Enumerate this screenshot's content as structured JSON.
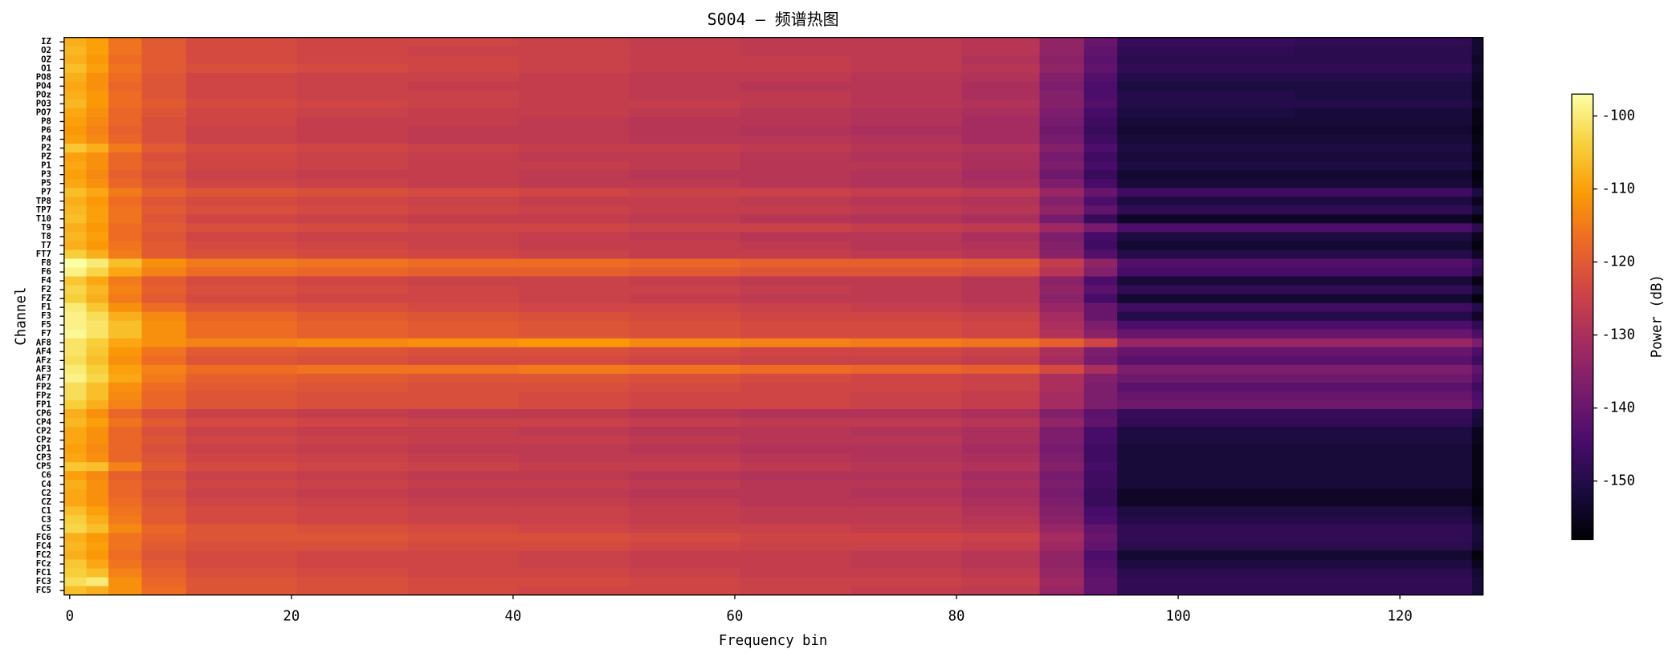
{
  "chart_data": {
    "type": "heatmap",
    "title": "S004 — 频谱热图",
    "x_label": "Frequency bin",
    "y_label": "Channel",
    "colorbar_label": "Power (dB)",
    "x_edges": [
      -0.5,
      1.5,
      3.5,
      6.5,
      10.5,
      20.5,
      30.5,
      40.5,
      50.5,
      60.5,
      70.5,
      80.5,
      87.5,
      91.5,
      94.5,
      110.5,
      126.5,
      127.5
    ],
    "xlim": [
      -0.5,
      127.5
    ],
    "xticks": [
      0,
      20,
      40,
      60,
      80,
      100,
      120
    ],
    "zlim": [
      -158,
      -97
    ],
    "zticks": [
      -100,
      -110,
      -120,
      -130,
      -140,
      -150
    ],
    "colormap": [
      "#000004",
      "#1b0c41",
      "#4a0c6b",
      "#781c6d",
      "#a52c60",
      "#cf4446",
      "#ed6925",
      "#fb9b06",
      "#f7d13d",
      "#fcffa4"
    ],
    "categories": [
      "IZ",
      "O2",
      "OZ",
      "O1",
      "PO8",
      "PO4",
      "POz",
      "PO3",
      "PO7",
      "P8",
      "P6",
      "P4",
      "P2",
      "PZ",
      "P1",
      "P3",
      "P5",
      "P7",
      "TP8",
      "TP7",
      "T10",
      "T9",
      "T8",
      "T7",
      "FT7",
      "F8",
      "F6",
      "F4",
      "F2",
      "FZ",
      "F1",
      "F3",
      "F5",
      "F7",
      "AF8",
      "AF4",
      "AFz",
      "AF3",
      "AF7",
      "FP2",
      "FPz",
      "FP1",
      "CP6",
      "CP4",
      "CP2",
      "CPz",
      "CP1",
      "CP3",
      "CP5",
      "C6",
      "C4",
      "C2",
      "CZ",
      "C1",
      "C3",
      "C5",
      "FC6",
      "FC4",
      "FC2",
      "FCz",
      "FC1",
      "FC3",
      "FC5"
    ],
    "values": [
      [
        -108,
        -110,
        -116,
        -120,
        -123,
        -124,
        -124,
        -125,
        -126,
        -127,
        -127,
        -128,
        -134,
        -140,
        -147,
        -148,
        -153
      ],
      [
        -107,
        -110,
        -116,
        -120,
        -123,
        -124,
        -125,
        -125,
        -126,
        -127,
        -127,
        -128,
        -134,
        -141,
        -148,
        -149,
        -153
      ],
      [
        -108,
        -111,
        -117,
        -120,
        -123,
        -124,
        -124,
        -125,
        -126,
        -126,
        -127,
        -129,
        -135,
        -142,
        -149,
        -149,
        -154
      ],
      [
        -106,
        -110,
        -116,
        -120,
        -122,
        -123,
        -124,
        -125,
        -126,
        -126,
        -127,
        -128,
        -134,
        -141,
        -148,
        -148,
        -153
      ],
      [
        -108,
        -112,
        -117,
        -121,
        -124,
        -125,
        -125,
        -126,
        -127,
        -127,
        -128,
        -129,
        -136,
        -143,
        -150,
        -150,
        -154
      ],
      [
        -109,
        -112,
        -118,
        -121,
        -124,
        -125,
        -126,
        -126,
        -127,
        -128,
        -128,
        -130,
        -137,
        -144,
        -151,
        -151,
        -155
      ],
      [
        -108,
        -111,
        -117,
        -121,
        -124,
        -125,
        -125,
        -126,
        -127,
        -127,
        -128,
        -130,
        -136,
        -144,
        -150,
        -151,
        -155
      ],
      [
        -107,
        -111,
        -117,
        -120,
        -123,
        -124,
        -125,
        -126,
        -126,
        -127,
        -128,
        -129,
        -136,
        -143,
        -150,
        -150,
        -154
      ],
      [
        -109,
        -112,
        -118,
        -121,
        -124,
        -125,
        -126,
        -126,
        -127,
        -128,
        -129,
        -130,
        -137,
        -145,
        -151,
        -152,
        -156
      ],
      [
        -110,
        -113,
        -118,
        -122,
        -124,
        -126,
        -126,
        -127,
        -128,
        -128,
        -129,
        -131,
        -138,
        -146,
        -152,
        -152,
        -156
      ],
      [
        -111,
        -114,
        -119,
        -122,
        -125,
        -126,
        -127,
        -127,
        -128,
        -129,
        -130,
        -131,
        -139,
        -147,
        -153,
        -153,
        -157
      ],
      [
        -110,
        -113,
        -118,
        -122,
        -125,
        -126,
        -127,
        -127,
        -128,
        -128,
        -129,
        -131,
        -138,
        -146,
        -152,
        -152,
        -156
      ],
      [
        -105,
        -108,
        -115,
        -120,
        -123,
        -124,
        -125,
        -126,
        -126,
        -127,
        -128,
        -129,
        -136,
        -144,
        -151,
        -151,
        -155
      ],
      [
        -110,
        -112,
        -118,
        -122,
        -124,
        -125,
        -126,
        -127,
        -127,
        -128,
        -129,
        -130,
        -138,
        -146,
        -152,
        -152,
        -156
      ],
      [
        -109,
        -112,
        -118,
        -121,
        -124,
        -125,
        -126,
        -126,
        -127,
        -128,
        -128,
        -130,
        -137,
        -145,
        -151,
        -151,
        -155
      ],
      [
        -110,
        -113,
        -119,
        -122,
        -125,
        -126,
        -126,
        -127,
        -128,
        -128,
        -129,
        -131,
        -139,
        -147,
        -153,
        -153,
        -157
      ],
      [
        -109,
        -112,
        -118,
        -121,
        -124,
        -125,
        -126,
        -127,
        -127,
        -128,
        -129,
        -130,
        -137,
        -145,
        -152,
        -152,
        -156
      ],
      [
        -106,
        -109,
        -115,
        -119,
        -121,
        -122,
        -123,
        -124,
        -125,
        -125,
        -126,
        -127,
        -133,
        -140,
        -146,
        -146,
        -151
      ],
      [
        -108,
        -111,
        -117,
        -121,
        -123,
        -124,
        -125,
        -126,
        -126,
        -127,
        -128,
        -129,
        -136,
        -144,
        -151,
        -151,
        -155
      ],
      [
        -107,
        -110,
        -116,
        -120,
        -122,
        -123,
        -124,
        -125,
        -126,
        -126,
        -127,
        -128,
        -134,
        -141,
        -148,
        -148,
        -152
      ],
      [
        -106,
        -110,
        -116,
        -121,
        -124,
        -125,
        -126,
        -126,
        -127,
        -128,
        -129,
        -130,
        -138,
        -147,
        -154,
        -154,
        -157
      ],
      [
        -108,
        -111,
        -117,
        -120,
        -122,
        -123,
        -124,
        -124,
        -125,
        -125,
        -126,
        -127,
        -132,
        -138,
        -144,
        -144,
        -149
      ],
      [
        -107,
        -110,
        -117,
        -121,
        -124,
        -125,
        -125,
        -126,
        -127,
        -128,
        -128,
        -130,
        -137,
        -145,
        -151,
        -151,
        -155
      ],
      [
        -108,
        -111,
        -116,
        -120,
        -123,
        -124,
        -125,
        -126,
        -126,
        -127,
        -128,
        -129,
        -136,
        -146,
        -153,
        -153,
        -157
      ],
      [
        -104,
        -108,
        -115,
        -120,
        -122,
        -123,
        -124,
        -125,
        -126,
        -126,
        -127,
        -128,
        -135,
        -143,
        -150,
        -150,
        -154
      ],
      [
        -97,
        -100,
        -106,
        -112,
        -115,
        -116,
        -117,
        -117,
        -118,
        -119,
        -119,
        -120,
        -126,
        -134,
        -143,
        -143,
        -147
      ],
      [
        -99,
        -103,
        -109,
        -114,
        -117,
        -118,
        -119,
        -119,
        -120,
        -121,
        -121,
        -122,
        -128,
        -136,
        -145,
        -145,
        -149
      ],
      [
        -105,
        -109,
        -115,
        -120,
        -123,
        -124,
        -125,
        -125,
        -126,
        -127,
        -127,
        -128,
        -135,
        -144,
        -152,
        -152,
        -156
      ],
      [
        -103,
        -107,
        -114,
        -119,
        -122,
        -123,
        -124,
        -125,
        -125,
        -126,
        -127,
        -128,
        -134,
        -142,
        -148,
        -148,
        -152
      ],
      [
        -104,
        -108,
        -115,
        -120,
        -123,
        -124,
        -124,
        -125,
        -126,
        -127,
        -127,
        -128,
        -135,
        -145,
        -153,
        -153,
        -157
      ],
      [
        -100,
        -105,
        -112,
        -117,
        -121,
        -122,
        -123,
        -124,
        -124,
        -125,
        -126,
        -127,
        -133,
        -140,
        -146,
        -146,
        -150
      ],
      [
        -99,
        -102,
        -108,
        -113,
        -118,
        -120,
        -121,
        -122,
        -123,
        -124,
        -124,
        -125,
        -131,
        -140,
        -150,
        -150,
        -154
      ],
      [
        -99,
        -101,
        -106,
        -112,
        -117,
        -119,
        -120,
        -121,
        -122,
        -123,
        -123,
        -124,
        -130,
        -137,
        -144,
        -144,
        -148
      ],
      [
        -98,
        -101,
        -106,
        -112,
        -117,
        -119,
        -120,
        -121,
        -122,
        -123,
        -123,
        -124,
        -129,
        -135,
        -140,
        -140,
        -144
      ],
      [
        -101,
        -104,
        -109,
        -112,
        -114,
        -113,
        -112,
        -111,
        -113,
        -114,
        -115,
        -116,
        -119,
        -124,
        -133,
        -133,
        -137
      ],
      [
        -101,
        -105,
        -111,
        -116,
        -120,
        -121,
        -122,
        -122,
        -123,
        -124,
        -124,
        -125,
        -130,
        -137,
        -140,
        -140,
        -144
      ],
      [
        -102,
        -106,
        -112,
        -117,
        -121,
        -122,
        -123,
        -123,
        -124,
        -125,
        -125,
        -126,
        -131,
        -138,
        -142,
        -142,
        -146
      ],
      [
        -100,
        -104,
        -110,
        -114,
        -117,
        -116,
        -116,
        -115,
        -116,
        -117,
        -118,
        -119,
        -123,
        -130,
        -137,
        -137,
        -141
      ],
      [
        -99,
        -103,
        -109,
        -115,
        -119,
        -120,
        -121,
        -121,
        -122,
        -123,
        -124,
        -125,
        -130,
        -136,
        -139,
        -139,
        -143
      ],
      [
        -102,
        -106,
        -112,
        -117,
        -120,
        -121,
        -122,
        -122,
        -123,
        -124,
        -124,
        -125,
        -130,
        -137,
        -142,
        -142,
        -146
      ],
      [
        -102,
        -106,
        -113,
        -118,
        -121,
        -122,
        -122,
        -123,
        -124,
        -124,
        -125,
        -126,
        -131,
        -137,
        -140,
        -140,
        -144
      ],
      [
        -104,
        -108,
        -114,
        -118,
        -121,
        -122,
        -122,
        -123,
        -124,
        -124,
        -125,
        -126,
        -131,
        -137,
        -139,
        -139,
        -143
      ],
      [
        -108,
        -112,
        -118,
        -122,
        -125,
        -126,
        -127,
        -127,
        -128,
        -129,
        -129,
        -130,
        -136,
        -142,
        -147,
        -147,
        -151
      ],
      [
        -107,
        -110,
        -116,
        -120,
        -123,
        -124,
        -125,
        -125,
        -126,
        -127,
        -127,
        -128,
        -134,
        -141,
        -148,
        -148,
        -152
      ],
      [
        -109,
        -112,
        -118,
        -122,
        -125,
        -126,
        -126,
        -127,
        -128,
        -128,
        -129,
        -130,
        -137,
        -145,
        -151,
        -151,
        -155
      ],
      [
        -109,
        -112,
        -118,
        -121,
        -124,
        -125,
        -126,
        -126,
        -127,
        -128,
        -128,
        -130,
        -137,
        -145,
        -151,
        -151,
        -155
      ],
      [
        -110,
        -113,
        -118,
        -122,
        -125,
        -126,
        -127,
        -127,
        -128,
        -129,
        -129,
        -131,
        -138,
        -146,
        -152,
        -152,
        -156
      ],
      [
        -109,
        -112,
        -118,
        -121,
        -124,
        -125,
        -126,
        -127,
        -127,
        -128,
        -129,
        -130,
        -137,
        -146,
        -152,
        -152,
        -156
      ],
      [
        -105,
        -106,
        -114,
        -120,
        -123,
        -124,
        -125,
        -126,
        -126,
        -127,
        -128,
        -129,
        -136,
        -145,
        -152,
        -152,
        -156
      ],
      [
        -110,
        -113,
        -119,
        -122,
        -125,
        -126,
        -127,
        -127,
        -128,
        -129,
        -129,
        -131,
        -138,
        -146,
        -152,
        -152,
        -156
      ],
      [
        -108,
        -112,
        -118,
        -121,
        -124,
        -125,
        -126,
        -126,
        -127,
        -128,
        -128,
        -130,
        -137,
        -146,
        -152,
        -152,
        -156
      ],
      [
        -109,
        -112,
        -118,
        -122,
        -125,
        -126,
        -127,
        -127,
        -128,
        -128,
        -129,
        -131,
        -138,
        -147,
        -154,
        -154,
        -157
      ],
      [
        -109,
        -112,
        -117,
        -121,
        -124,
        -125,
        -126,
        -126,
        -127,
        -128,
        -128,
        -130,
        -137,
        -147,
        -154,
        -154,
        -157
      ],
      [
        -106,
        -110,
        -116,
        -120,
        -123,
        -124,
        -125,
        -125,
        -126,
        -127,
        -127,
        -129,
        -136,
        -145,
        -151,
        -151,
        -155
      ],
      [
        -104,
        -108,
        -115,
        -120,
        -123,
        -124,
        -125,
        -125,
        -126,
        -127,
        -127,
        -128,
        -135,
        -144,
        -150,
        -150,
        -154
      ],
      [
        -103,
        -106,
        -113,
        -118,
        -121,
        -122,
        -123,
        -124,
        -125,
        -125,
        -126,
        -127,
        -133,
        -141,
        -148,
        -148,
        -152
      ],
      [
        -108,
        -111,
        -116,
        -119,
        -121,
        -121,
        -122,
        -122,
        -123,
        -124,
        -124,
        -125,
        -131,
        -140,
        -148,
        -148,
        -152
      ],
      [
        -107,
        -110,
        -116,
        -120,
        -122,
        -122,
        -123,
        -123,
        -124,
        -125,
        -125,
        -126,
        -132,
        -141,
        -149,
        -149,
        -153
      ],
      [
        -108,
        -111,
        -117,
        -121,
        -123,
        -124,
        -124,
        -125,
        -126,
        -126,
        -127,
        -128,
        -134,
        -144,
        -153,
        -153,
        -157
      ],
      [
        -105,
        -109,
        -116,
        -120,
        -123,
        -124,
        -124,
        -125,
        -126,
        -126,
        -127,
        -128,
        -134,
        -143,
        -151,
        -151,
        -155
      ],
      [
        -104,
        -106,
        -114,
        -119,
        -122,
        -123,
        -124,
        -124,
        -125,
        -126,
        -126,
        -127,
        -133,
        -142,
        -149,
        -149,
        -153
      ],
      [
        -102,
        -100,
        -112,
        -118,
        -121,
        -122,
        -123,
        -123,
        -124,
        -125,
        -125,
        -126,
        -132,
        -141,
        -148,
        -148,
        -152
      ],
      [
        -106,
        -108,
        -112,
        -117,
        -121,
        -122,
        -123,
        -124,
        -124,
        -125,
        -126,
        -127,
        -133,
        -141,
        -148,
        -148,
        -152
      ]
    ]
  }
}
